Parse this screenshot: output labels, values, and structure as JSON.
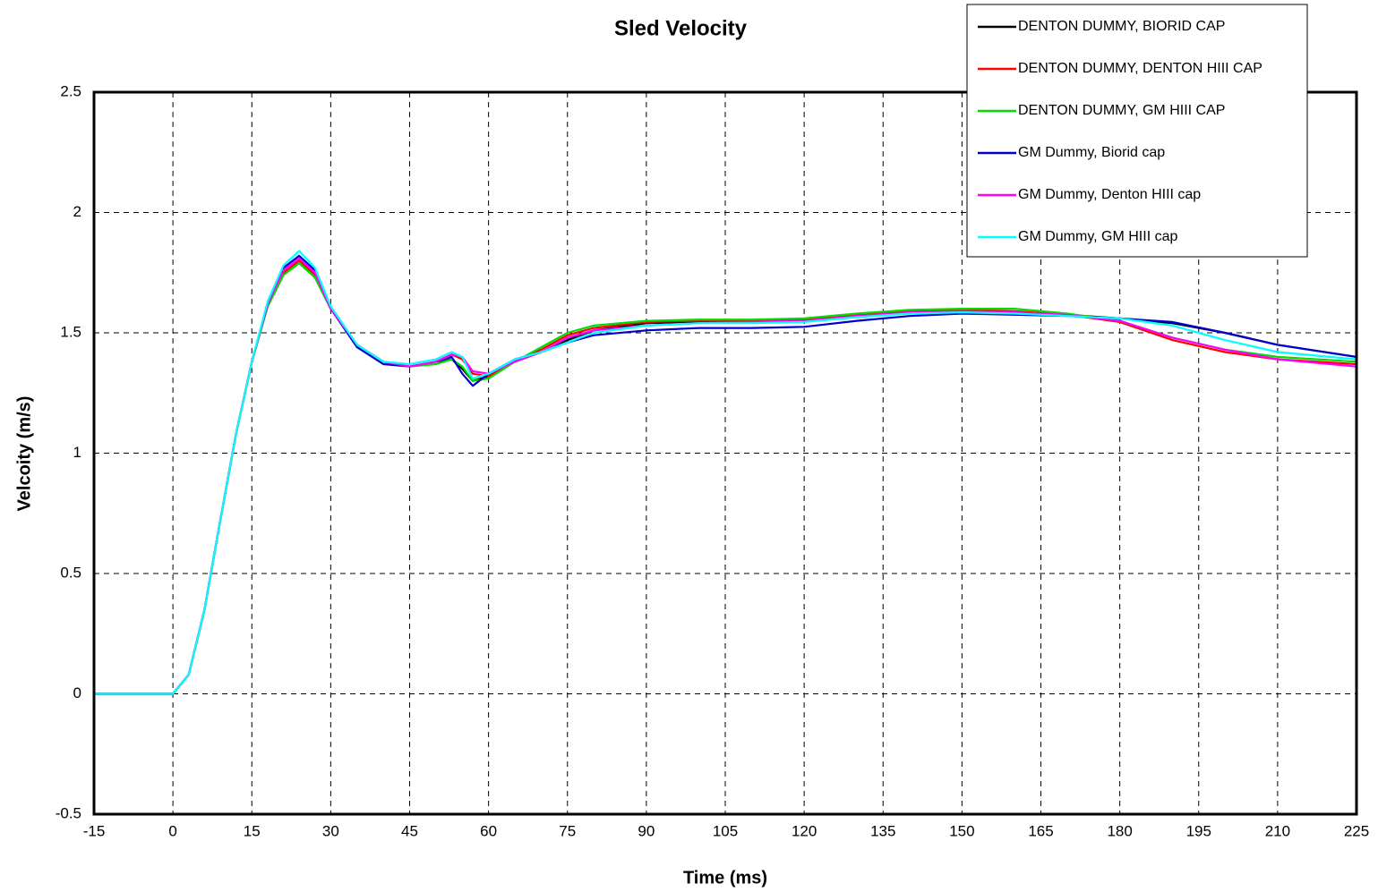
{
  "chart_data": {
    "type": "line",
    "title": "Sled Velocity",
    "x_label": "Time (ms)",
    "y_label": "Velcoity (m/s)",
    "x": [
      -15,
      -10,
      -5,
      0,
      3,
      6,
      9,
      12,
      15,
      18,
      21,
      24,
      27,
      30,
      35,
      40,
      45,
      50,
      53,
      55,
      57,
      60,
      65,
      70,
      75,
      80,
      90,
      100,
      110,
      120,
      130,
      140,
      150,
      160,
      170,
      180,
      190,
      200,
      210,
      225
    ],
    "series": [
      {
        "name": "DENTON DUMMY, BIORID CAP",
        "color": "#000000",
        "values": [
          0,
          0,
          0,
          0,
          0.08,
          0.35,
          0.72,
          1.08,
          1.38,
          1.61,
          1.74,
          1.79,
          1.73,
          1.6,
          1.45,
          1.38,
          1.36,
          1.38,
          1.39,
          1.35,
          1.3,
          1.32,
          1.38,
          1.42,
          1.47,
          1.51,
          1.54,
          1.545,
          1.545,
          1.55,
          1.57,
          1.585,
          1.59,
          1.585,
          1.575,
          1.56,
          1.54,
          1.5,
          1.45,
          1.4
        ]
      },
      {
        "name": "DENTON DUMMY, DENTON HIII CAP",
        "color": "#ff0000",
        "values": [
          0,
          0,
          0,
          0,
          0.08,
          0.35,
          0.72,
          1.08,
          1.38,
          1.62,
          1.75,
          1.8,
          1.74,
          1.6,
          1.45,
          1.38,
          1.36,
          1.38,
          1.41,
          1.39,
          1.33,
          1.32,
          1.38,
          1.43,
          1.49,
          1.52,
          1.545,
          1.55,
          1.55,
          1.555,
          1.575,
          1.59,
          1.595,
          1.59,
          1.575,
          1.545,
          1.47,
          1.42,
          1.39,
          1.37
        ]
      },
      {
        "name": "DENTON DUMMY, GM HIII CAP",
        "color": "#00dd00",
        "values": [
          0,
          0,
          0,
          0,
          0.08,
          0.35,
          0.72,
          1.08,
          1.38,
          1.61,
          1.74,
          1.79,
          1.73,
          1.6,
          1.45,
          1.38,
          1.36,
          1.37,
          1.39,
          1.36,
          1.3,
          1.31,
          1.38,
          1.44,
          1.5,
          1.53,
          1.55,
          1.555,
          1.555,
          1.56,
          1.58,
          1.595,
          1.6,
          1.6,
          1.58,
          1.55,
          1.48,
          1.43,
          1.4,
          1.38
        ]
      },
      {
        "name": "GM Dummy, Biorid cap",
        "color": "#0000cc",
        "values": [
          0,
          0,
          0,
          0,
          0.08,
          0.35,
          0.72,
          1.08,
          1.38,
          1.62,
          1.77,
          1.82,
          1.76,
          1.6,
          1.44,
          1.37,
          1.36,
          1.38,
          1.4,
          1.33,
          1.28,
          1.33,
          1.39,
          1.42,
          1.46,
          1.49,
          1.51,
          1.52,
          1.52,
          1.525,
          1.55,
          1.57,
          1.58,
          1.575,
          1.57,
          1.56,
          1.545,
          1.5,
          1.45,
          1.4
        ]
      },
      {
        "name": "GM Dummy, Denton HIII cap",
        "color": "#ff00ff",
        "values": [
          0,
          0,
          0,
          0,
          0.08,
          0.35,
          0.72,
          1.08,
          1.38,
          1.62,
          1.76,
          1.81,
          1.75,
          1.6,
          1.45,
          1.38,
          1.36,
          1.38,
          1.41,
          1.4,
          1.34,
          1.33,
          1.38,
          1.42,
          1.48,
          1.51,
          1.53,
          1.54,
          1.545,
          1.55,
          1.57,
          1.585,
          1.59,
          1.585,
          1.575,
          1.55,
          1.48,
          1.43,
          1.39,
          1.36
        ]
      },
      {
        "name": "GM Dummy, GM HIII cap",
        "color": "#00ffff",
        "values": [
          0,
          0,
          0,
          0,
          0.08,
          0.35,
          0.72,
          1.08,
          1.38,
          1.63,
          1.78,
          1.84,
          1.77,
          1.61,
          1.45,
          1.38,
          1.37,
          1.39,
          1.42,
          1.4,
          1.31,
          1.33,
          1.39,
          1.42,
          1.46,
          1.5,
          1.53,
          1.54,
          1.54,
          1.545,
          1.565,
          1.58,
          1.585,
          1.58,
          1.57,
          1.56,
          1.53,
          1.47,
          1.42,
          1.39
        ]
      }
    ],
    "xlim": [
      -15,
      225
    ],
    "xticks": [
      -15,
      0,
      15,
      30,
      45,
      60,
      75,
      90,
      105,
      120,
      135,
      150,
      165,
      180,
      195,
      210,
      225
    ],
    "ylim": [
      -0.5,
      2.5
    ],
    "yticks": [
      -0.5,
      0,
      0.5,
      1,
      1.5,
      2,
      2.5
    ],
    "grid": true,
    "legend": "top-right"
  }
}
